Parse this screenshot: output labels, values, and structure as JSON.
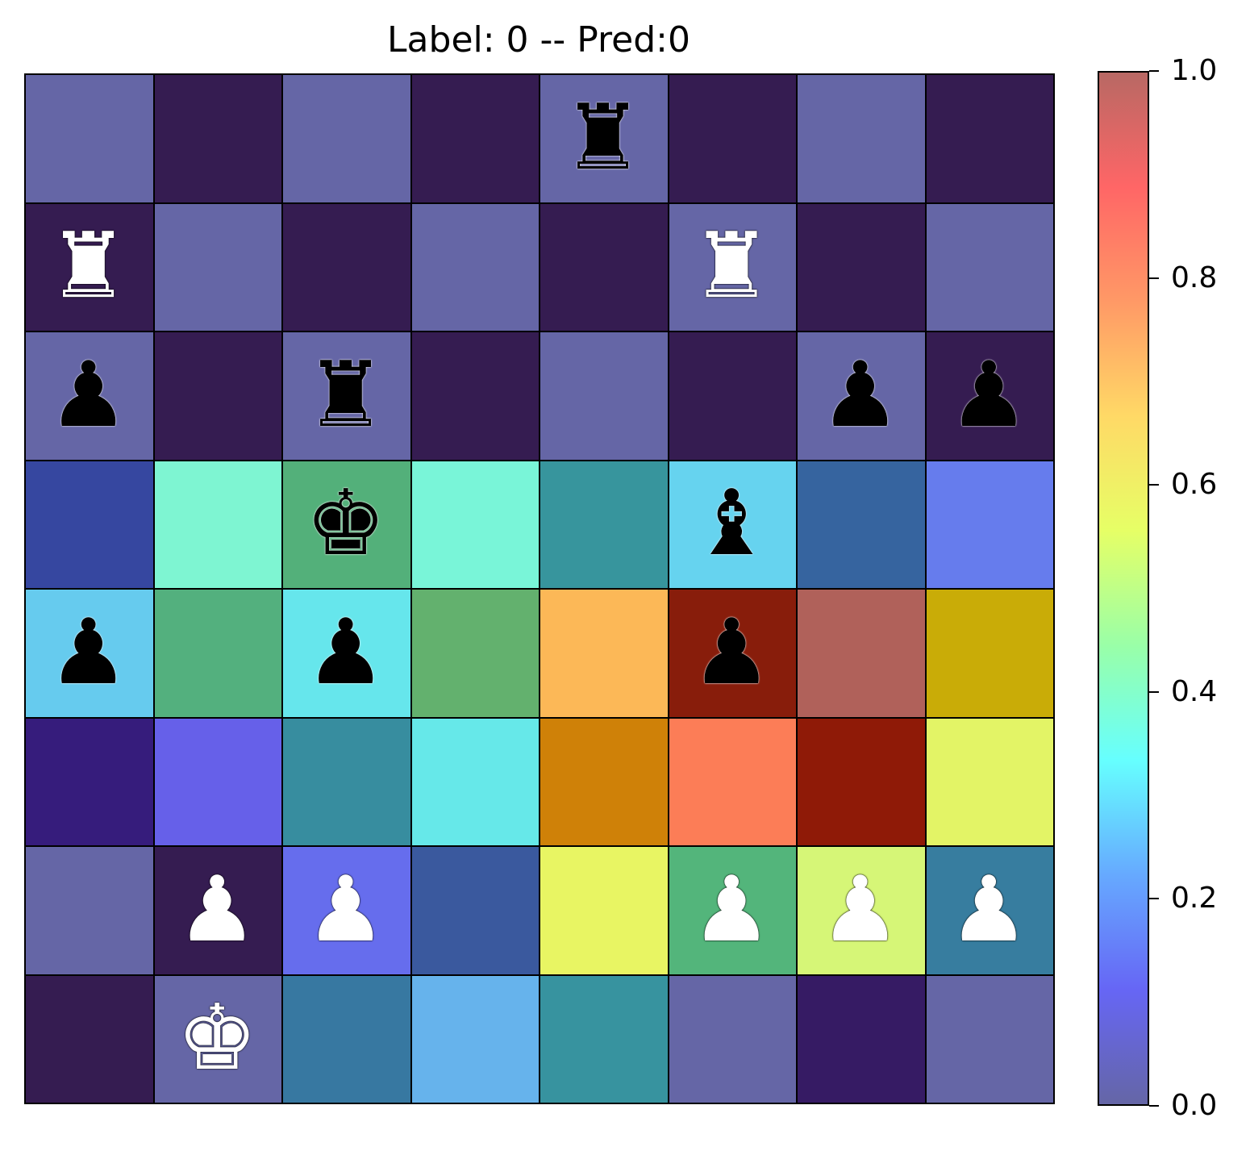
{
  "chart_data": {
    "type": "heatmap",
    "title": "Label: 0 -- Pred:0",
    "rows": 8,
    "cols": 8,
    "colorbar": {
      "range": [
        0.0,
        1.0
      ],
      "ticks": [
        "0.0",
        "0.2",
        "0.4",
        "0.6",
        "0.8",
        "1.0"
      ],
      "colors": [
        "#6566a6",
        "#6666f5",
        "#66a9ff",
        "#66ffff",
        "#99ffa8",
        "#e6ff66",
        "#ffd966",
        "#ff9966",
        "#ff6666",
        "#b86864"
      ]
    },
    "base_colors": {
      "light": "#6566a6",
      "dark": "#351c51"
    },
    "cells": [
      [
        "#6566a6",
        "#351c51",
        "#6566a6",
        "#351c51",
        "#6566a6",
        "#351c51",
        "#6566a6",
        "#351c51"
      ],
      [
        "#351c51",
        "#6566a6",
        "#351c51",
        "#6566a6",
        "#351c51",
        "#6566a6",
        "#351c51",
        "#6566a6"
      ],
      [
        "#6566a6",
        "#351c51",
        "#6566a6",
        "#351c51",
        "#6566a6",
        "#351c51",
        "#6566a6",
        "#351c51"
      ],
      [
        "#3647a0",
        "#7ef5d2",
        "#53b07a",
        "#79f5d8",
        "#37959d",
        "#66d3ef",
        "#36649f",
        "#667ced"
      ],
      [
        "#66cbee",
        "#53b07e",
        "#66e6ec",
        "#63b16e",
        "#fcb857",
        "#881d0b",
        "#b0615a",
        "#c9ac07"
      ],
      [
        "#361c7c",
        "#6660e9",
        "#378d9f",
        "#66e8e9",
        "#cf8108",
        "#fc7d57",
        "#8f1a07",
        "#e3f466"
      ],
      [
        "#6566a6",
        "#351c51",
        "#666ded",
        "#3a599e",
        "#e8f563",
        "#53b57b",
        "#d6f677",
        "#377d9f"
      ],
      [
        "#351c51",
        "#6566a6",
        "#3778a1",
        "#66b3ec",
        "#37939f",
        "#6566a6",
        "#361b64",
        "#6566a6"
      ]
    ],
    "pieces": [
      {
        "row": 0,
        "col": 4,
        "glyph": "♜",
        "name": "black-rook",
        "color": "black"
      },
      {
        "row": 1,
        "col": 0,
        "glyph": "♜",
        "name": "white-rook",
        "color": "white"
      },
      {
        "row": 1,
        "col": 5,
        "glyph": "♜",
        "name": "white-rook",
        "color": "white"
      },
      {
        "row": 2,
        "col": 0,
        "glyph": "♟",
        "name": "black-pawn",
        "color": "black"
      },
      {
        "row": 2,
        "col": 2,
        "glyph": "♜",
        "name": "black-rook",
        "color": "black"
      },
      {
        "row": 2,
        "col": 6,
        "glyph": "♟",
        "name": "black-pawn",
        "color": "black"
      },
      {
        "row": 2,
        "col": 7,
        "glyph": "♟",
        "name": "black-pawn",
        "color": "black"
      },
      {
        "row": 3,
        "col": 2,
        "glyph": "♚",
        "name": "black-king",
        "color": "black"
      },
      {
        "row": 3,
        "col": 5,
        "glyph": "♝",
        "name": "black-bishop",
        "color": "black"
      },
      {
        "row": 4,
        "col": 0,
        "glyph": "♟",
        "name": "black-pawn",
        "color": "black"
      },
      {
        "row": 4,
        "col": 2,
        "glyph": "♟",
        "name": "black-pawn",
        "color": "black"
      },
      {
        "row": 4,
        "col": 5,
        "glyph": "♟",
        "name": "black-pawn",
        "color": "black"
      },
      {
        "row": 6,
        "col": 1,
        "glyph": "♟",
        "name": "white-pawn",
        "color": "white"
      },
      {
        "row": 6,
        "col": 2,
        "glyph": "♟",
        "name": "white-pawn",
        "color": "white"
      },
      {
        "row": 6,
        "col": 5,
        "glyph": "♟",
        "name": "white-pawn",
        "color": "white"
      },
      {
        "row": 6,
        "col": 6,
        "glyph": "♟",
        "name": "white-pawn",
        "color": "white"
      },
      {
        "row": 6,
        "col": 7,
        "glyph": "♟",
        "name": "white-pawn",
        "color": "white"
      },
      {
        "row": 7,
        "col": 1,
        "glyph": "♚",
        "name": "white-king",
        "color": "white"
      }
    ]
  }
}
